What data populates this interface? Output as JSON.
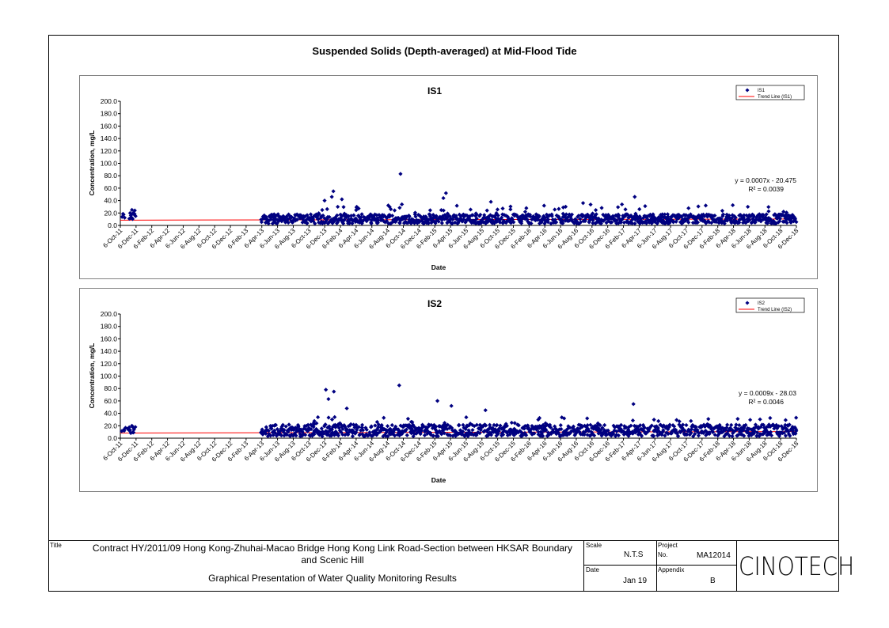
{
  "page": {
    "main_title": "Suspended Solids (Depth-averaged) at Mid-Flood Tide"
  },
  "colors": {
    "marker": "#000080",
    "trend": "#ff0000",
    "axis": "#808080"
  },
  "chart_data": [
    {
      "type": "scatter",
      "title": "IS1",
      "xlabel": "Date",
      "ylabel": "Concentration, mg/L",
      "ylim": [
        0,
        200
      ],
      "ytick_labels": [
        "0.0",
        "20.0",
        "40.0",
        "60.0",
        "80.0",
        "100.0",
        "120.0",
        "140.0",
        "160.0",
        "180.0",
        "200.0"
      ],
      "x_tick_labels": [
        "6-Oct-11",
        "6-Dec-11",
        "6-Feb-12",
        "6-Apr-12",
        "6-Jun-12",
        "6-Aug-12",
        "6-Oct-12",
        "6-Dec-12",
        "6-Feb-13",
        "6-Apr-13",
        "6-Jun-13",
        "6-Aug-13",
        "6-Oct-13",
        "6-Dec-13",
        "6-Feb-14",
        "6-Apr-14",
        "6-Jun-14",
        "6-Aug-14",
        "6-Oct-14",
        "6-Dec-14",
        "6-Feb-15",
        "6-Apr-15",
        "6-Jun-15",
        "6-Aug-15",
        "6-Oct-15",
        "6-Dec-15",
        "6-Feb-16",
        "6-Apr-16",
        "6-Jun-16",
        "6-Aug-16",
        "6-Oct-16",
        "6-Dec-16",
        "6-Feb-17",
        "6-Apr-17",
        "6-Jun-17",
        "6-Aug-17",
        "6-Oct-17",
        "6-Dec-17",
        "6-Feb-18",
        "6-Apr-18",
        "6-Jun-18",
        "6-Aug-18",
        "6-Oct-18",
        "6-Dec-18"
      ],
      "xlim": [
        "2011-10-06",
        "2018-12-06"
      ],
      "legend": {
        "position": "top-right",
        "entries": [
          "IS1",
          "Trend Line (IS1)"
        ]
      },
      "trend_equation": "y = 0.0007x - 20.475",
      "r_squared": "R² = 0.0039",
      "trend_line": {
        "x": [
          "2011-10-06",
          "2018-12-06"
        ],
        "y": [
          8.5,
          10.3
        ]
      },
      "series": [
        {
          "name": "IS1",
          "notable_points": [
            {
              "x": "2011-11-20",
              "y": 25
            },
            {
              "x": "2011-11-25",
              "y": 20
            },
            {
              "x": "2011-12-01",
              "y": 24
            },
            {
              "x": "2011-12-04",
              "y": 15
            },
            {
              "x": "2013-12-05",
              "y": 40
            },
            {
              "x": "2014-01-02",
              "y": 46
            },
            {
              "x": "2014-01-08",
              "y": 55
            },
            {
              "x": "2014-01-25",
              "y": 30
            },
            {
              "x": "2014-02-10",
              "y": 42
            },
            {
              "x": "2014-09-25",
              "y": 83
            },
            {
              "x": "2015-03-20",
              "y": 52
            },
            {
              "x": "2015-03-10",
              "y": 44
            },
            {
              "x": "2015-09-10",
              "y": 38
            },
            {
              "x": "2016-09-01",
              "y": 36
            },
            {
              "x": "2017-03-20",
              "y": 46
            },
            {
              "x": "2018-06-01",
              "y": 30
            }
          ],
          "baseline_range": {
            "start": "2013-04-01",
            "end": "2018-12-06",
            "typical_low": 3,
            "typical_high": 18
          }
        }
      ]
    },
    {
      "type": "scatter",
      "title": "IS2",
      "xlabel": "Date",
      "ylabel": "Concentration, mg/L",
      "ylim": [
        0,
        200
      ],
      "ytick_labels": [
        "0.0",
        "20.0",
        "40.0",
        "60.0",
        "80.0",
        "100.0",
        "120.0",
        "140.0",
        "160.0",
        "180.0",
        "200.0"
      ],
      "x_tick_labels": [
        "6-Oct-11",
        "6-Dec-11",
        "6-Feb-12",
        "6-Apr-12",
        "6-Jun-12",
        "6-Aug-12",
        "6-Oct-12",
        "6-Dec-12",
        "6-Feb-13",
        "6-Apr-13",
        "6-Jun-13",
        "6-Aug-13",
        "6-Oct-13",
        "6-Dec-13",
        "6-Feb-14",
        "6-Apr-14",
        "6-Jun-14",
        "6-Aug-14",
        "6-Oct-14",
        "6-Dec-14",
        "6-Feb-15",
        "6-Apr-15",
        "6-Jun-15",
        "6-Aug-15",
        "6-Oct-15",
        "6-Dec-15",
        "6-Feb-16",
        "6-Apr-16",
        "6-Jun-16",
        "6-Aug-16",
        "6-Oct-16",
        "6-Dec-16",
        "6-Feb-17",
        "6-Apr-17",
        "6-Jun-17",
        "6-Aug-17",
        "6-Oct-17",
        "6-Dec-17",
        "6-Feb-18",
        "6-Apr-18",
        "6-Jun-18",
        "6-Aug-18",
        "6-Oct-18",
        "6-Dec-18"
      ],
      "xlim": [
        "2011-10-06",
        "2018-12-06"
      ],
      "legend": {
        "position": "top-right",
        "entries": [
          "IS2",
          "Trend Line (IS2)"
        ]
      },
      "trend_equation": "y = 0.0009x - 28.03",
      "r_squared": "R² = 0.0046",
      "trend_line": {
        "x": [
          "2011-10-06",
          "2018-12-06"
        ],
        "y": [
          8.3,
          10.7
        ]
      },
      "series": [
        {
          "name": "IS2",
          "notable_points": [
            {
              "x": "2011-11-20",
              "y": 20
            },
            {
              "x": "2011-11-28",
              "y": 14
            },
            {
              "x": "2011-12-03",
              "y": 18
            },
            {
              "x": "2013-12-10",
              "y": 78
            },
            {
              "x": "2013-12-20",
              "y": 63
            },
            {
              "x": "2014-01-10",
              "y": 75
            },
            {
              "x": "2014-03-01",
              "y": 48
            },
            {
              "x": "2014-09-20",
              "y": 85
            },
            {
              "x": "2015-02-15",
              "y": 60
            },
            {
              "x": "2015-04-10",
              "y": 52
            },
            {
              "x": "2015-08-20",
              "y": 45
            },
            {
              "x": "2017-03-15",
              "y": 55
            },
            {
              "x": "2018-12-05",
              "y": 33
            }
          ],
          "baseline_range": {
            "start": "2013-04-01",
            "end": "2018-12-06",
            "typical_low": 3,
            "typical_high": 22
          }
        }
      ]
    }
  ],
  "title_block": {
    "title_label": "Title",
    "title_line1": "Contract HY/2011/09 Hong Kong-Zhuhai-Macao Bridge Hong Kong Link Road-Section between HKSAR Boundary",
    "title_line2": "and Scenic Hill",
    "subtitle": "Graphical Presentation of Water Quality Monitoring Results",
    "scale_label": "Scale",
    "scale_value": "N.T.S",
    "project_label": "Project",
    "project_no_label": "No.",
    "project_no_value": "MA12014",
    "date_label": "Date",
    "date_value": "Jan 19",
    "appendix_label": "Appendix",
    "appendix_value": "B",
    "logo_text": "CINOTECH"
  }
}
